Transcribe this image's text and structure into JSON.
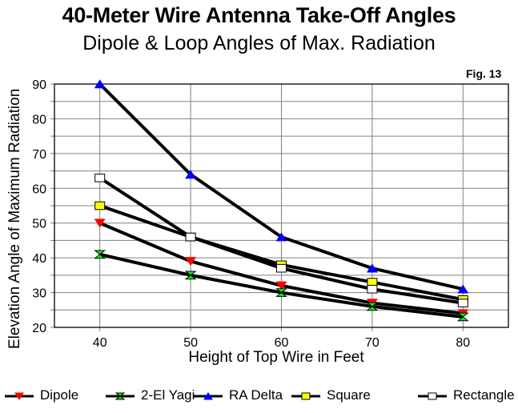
{
  "chart_data": {
    "type": "line",
    "title": "40-Meter Wire Antenna Take-Off Angles",
    "subtitle": "Dipole & Loop Angles of Max. Radiation",
    "annotation": "Fig. 13",
    "xlabel": "Height of Top Wire in Feet",
    "ylabel": "Elevation Angle of Maximum Radiation",
    "x": [
      40,
      50,
      60,
      70,
      80
    ],
    "xlim": [
      35,
      85
    ],
    "ylim": [
      20,
      90
    ],
    "x_ticks": [
      "40",
      "50",
      "60",
      "70",
      "80"
    ],
    "y_ticks": [
      "20",
      "30",
      "40",
      "50",
      "60",
      "70",
      "80",
      "90"
    ],
    "y_minor_step": 5,
    "grid": true,
    "legend_position": "bottom",
    "series": [
      {
        "name": "Dipole",
        "marker": "triangle-down",
        "color": "#ff0000",
        "values": [
          50,
          39,
          32,
          27,
          24
        ]
      },
      {
        "name": "2-El Yagi",
        "marker": "hourglass",
        "color": "#00ff00",
        "values": [
          41,
          35,
          30,
          26,
          23
        ]
      },
      {
        "name": "RA Delta",
        "marker": "triangle-up",
        "color": "#0000ff",
        "values": [
          90,
          64,
          46,
          37,
          31
        ]
      },
      {
        "name": "Square",
        "marker": "square",
        "color": "#ffff00",
        "values": [
          55,
          46,
          38,
          33,
          28
        ]
      },
      {
        "name": "Rectangle",
        "marker": "square",
        "color": "#ffffff",
        "values": [
          63,
          46,
          37,
          31,
          27
        ]
      }
    ]
  }
}
